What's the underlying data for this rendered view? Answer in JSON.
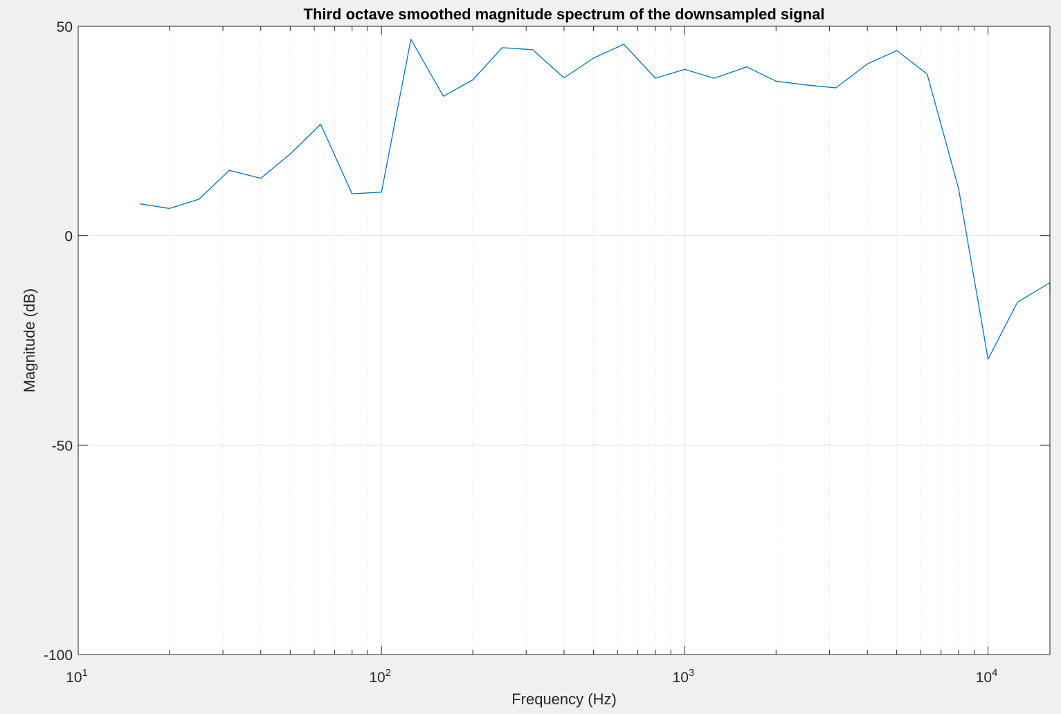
{
  "chart_data": {
    "type": "line",
    "title": "Third octave smoothed magnitude spectrum of the downsampled signal",
    "xlabel": "Frequency (Hz)",
    "ylabel": "Magnitude (dB)",
    "x_scale": "log",
    "xlim": [
      10,
      16000
    ],
    "ylim": [
      -100,
      50
    ],
    "grid": true,
    "y_ticks": [
      {
        "value": 50,
        "label": "50"
      },
      {
        "value": 0,
        "label": "0"
      },
      {
        "value": -50,
        "label": "-50"
      },
      {
        "value": -100,
        "label": "-100"
      }
    ],
    "x_ticks": [
      {
        "value": 10,
        "base": "10",
        "exp": "1"
      },
      {
        "value": 100,
        "base": "10",
        "exp": "2"
      },
      {
        "value": 1000,
        "base": "10",
        "exp": "3"
      },
      {
        "value": 10000,
        "base": "10",
        "exp": "4"
      }
    ],
    "series": [
      {
        "color": "#0072bd",
        "x": [
          16,
          20,
          25,
          31.5,
          40,
          50,
          63,
          80,
          100,
          125,
          160,
          200,
          250,
          315,
          400,
          500,
          630,
          800,
          1000,
          1250,
          1600,
          2000,
          2500,
          3150,
          4000,
          5000,
          6300,
          8000,
          10000,
          12500,
          16000,
          16000
        ],
        "y": [
          7.6,
          6.5,
          8.7,
          15.6,
          13.7,
          19.5,
          26.6,
          10.0,
          10.4,
          46.9,
          33.3,
          37.2,
          44.9,
          44.4,
          37.7,
          42.4,
          45.7,
          37.6,
          39.7,
          37.6,
          40.3,
          36.9,
          36.0,
          35.3,
          41.0,
          44.2,
          38.6,
          11.2,
          -29.5,
          -15.9,
          -11.2,
          -14.0
        ]
      }
    ]
  }
}
